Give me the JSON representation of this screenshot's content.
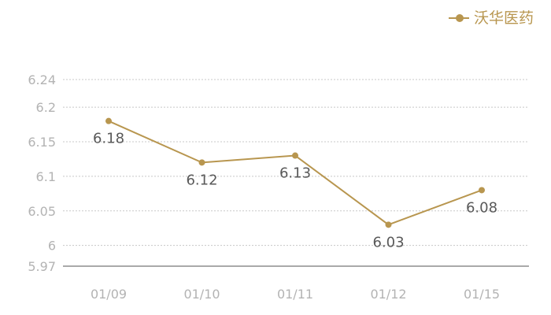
{
  "legend": {
    "label": "沃华医药",
    "color": "#b8964f"
  },
  "chart_data": {
    "type": "line",
    "categories": [
      "01/09",
      "01/10",
      "01/11",
      "01/12",
      "01/15"
    ],
    "series": [
      {
        "name": "沃华医药",
        "values": [
          6.18,
          6.12,
          6.13,
          6.03,
          6.08
        ],
        "color": "#b8964f"
      }
    ],
    "data_labels": [
      "6.18",
      "6.12",
      "6.13",
      "6.03",
      "6.08"
    ],
    "y_ticks": [
      "6.24",
      "6.2",
      "6.15",
      "6.1",
      "6.05",
      "6",
      "5.97"
    ],
    "ylim": [
      5.97,
      6.24
    ],
    "grid": true,
    "legend_position": "top-right"
  }
}
